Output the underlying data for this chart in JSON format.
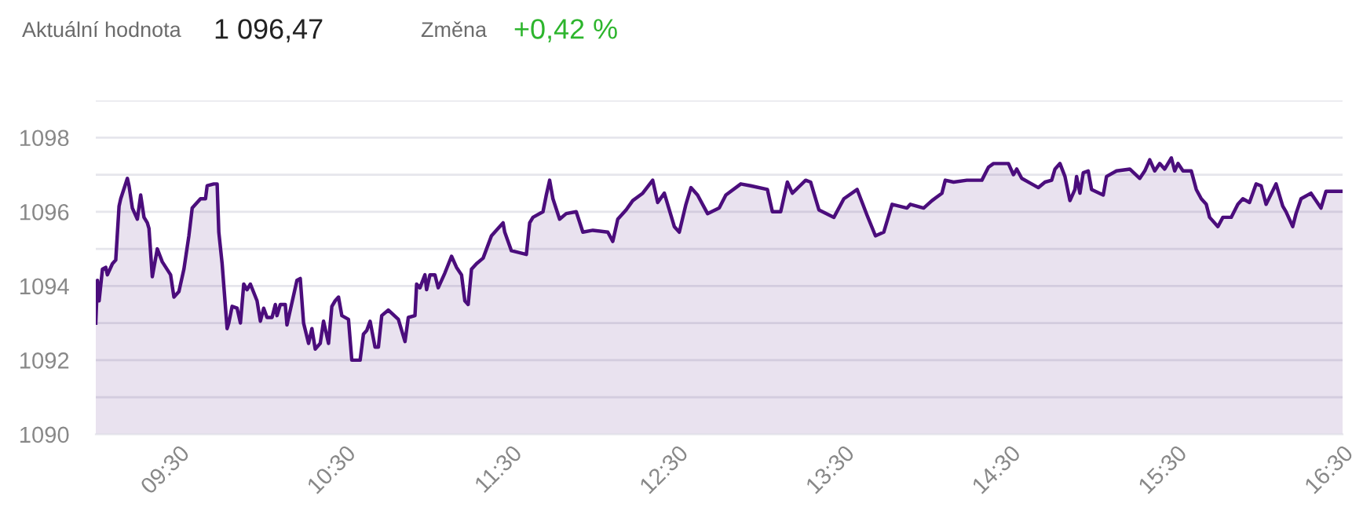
{
  "chart_data": {
    "type": "area",
    "annotations": [
      "Aktuální hodnota",
      "1 096,47",
      "Změna",
      "+0,42 %"
    ],
    "xlim": [
      9,
      16.5
    ],
    "xticks": [
      {
        "value": 9.5,
        "label": "09:30"
      },
      {
        "value": 10.5,
        "label": "10:30"
      },
      {
        "value": 11.5,
        "label": "11:30"
      },
      {
        "value": 12.5,
        "label": "12:30"
      },
      {
        "value": 13.5,
        "label": "13:30"
      },
      {
        "value": 14.5,
        "label": "14:30"
      },
      {
        "value": 15.5,
        "label": "15:30"
      },
      {
        "value": 16.5,
        "label": "16:30"
      }
    ],
    "ylim": [
      1090,
      1099
    ],
    "yticks": [
      1090,
      {
        "value": 1091,
        "label": null
      },
      1092,
      {
        "value": 1093,
        "label": null
      },
      1094,
      {
        "value": 1095,
        "label": null
      },
      1096,
      {
        "value": 1097,
        "label": null
      },
      1098,
      {
        "value": 1099,
        "label": null
      }
    ],
    "grid": "y",
    "legend": false,
    "marker": "none",
    "line_style": "solid",
    "series": [
      {
        "color": "#4b0d7c",
        "x": [
          9.0,
          9.01,
          9.02,
          9.04,
          9.06,
          9.07,
          9.1,
          9.12,
          9.14,
          9.15,
          9.19,
          9.2,
          9.22,
          9.23,
          9.25,
          9.27,
          9.29,
          9.31,
          9.32,
          9.34,
          9.37,
          9.4,
          9.45,
          9.47,
          9.5,
          9.53,
          9.56,
          9.58,
          9.6,
          9.63,
          9.66,
          9.67,
          9.71,
          9.73,
          9.74,
          9.76,
          9.79,
          9.8,
          9.82,
          9.85,
          9.87,
          9.89,
          9.91,
          9.93,
          9.97,
          9.99,
          10.01,
          10.03,
          10.06,
          10.08,
          10.09,
          10.11,
          10.14,
          10.15,
          10.17,
          10.21,
          10.23,
          10.25,
          10.28,
          10.3,
          10.32,
          10.35,
          10.37,
          10.4,
          10.42,
          10.44,
          10.46,
          10.48,
          10.52,
          10.54,
          10.59,
          10.61,
          10.63,
          10.65,
          10.68,
          10.7,
          10.72,
          10.76,
          10.82,
          10.86,
          10.88,
          10.92,
          10.93,
          10.95,
          10.98,
          10.99,
          11.01,
          11.04,
          11.06,
          11.1,
          11.14,
          11.17,
          11.2,
          11.22,
          11.24,
          11.26,
          11.29,
          11.33,
          11.38,
          11.42,
          11.45,
          11.46,
          11.5,
          11.59,
          11.61,
          11.63,
          11.69,
          11.71,
          11.73,
          11.75,
          11.79,
          11.83,
          11.89,
          11.93,
          11.99,
          12.08,
          12.11,
          12.14,
          12.19,
          12.23,
          12.29,
          12.35,
          12.38,
          12.42,
          12.48,
          12.51,
          12.55,
          12.58,
          12.62,
          12.68,
          12.75,
          12.79,
          12.88,
          12.94,
          13.04,
          13.07,
          13.12,
          13.16,
          13.19,
          13.27,
          13.3,
          13.35,
          13.44,
          13.5,
          13.58,
          13.64,
          13.69,
          13.74,
          13.79,
          13.88,
          13.9,
          13.98,
          14.03,
          14.09,
          14.11,
          14.16,
          14.24,
          14.33,
          14.37,
          14.4,
          14.49,
          14.52,
          14.54,
          14.57,
          14.63,
          14.67,
          14.71,
          14.75,
          14.77,
          14.8,
          14.83,
          14.86,
          14.89,
          14.9,
          14.92,
          14.94,
          14.97,
          14.99,
          15.06,
          15.08,
          15.14,
          15.22,
          15.28,
          15.31,
          15.34,
          15.37,
          15.4,
          15.43,
          15.47,
          15.49,
          15.51,
          15.54,
          15.59,
          15.62,
          15.65,
          15.68,
          15.7,
          15.75,
          15.78,
          15.83,
          15.87,
          15.9,
          15.94,
          15.98,
          16.01,
          16.04,
          16.1,
          16.14,
          16.16,
          16.2,
          16.22,
          16.25,
          16.31,
          16.37,
          16.4,
          16.5
        ],
        "values": [
          1093.0,
          1094.15,
          1093.6,
          1094.45,
          1094.5,
          1094.3,
          1094.6,
          1094.7,
          1096.15,
          1096.35,
          1096.9,
          1096.7,
          1096.1,
          1096.0,
          1095.8,
          1096.45,
          1095.85,
          1095.7,
          1095.55,
          1094.25,
          1095.0,
          1094.65,
          1094.3,
          1093.7,
          1093.85,
          1094.45,
          1095.35,
          1096.1,
          1096.2,
          1096.35,
          1096.35,
          1096.7,
          1096.75,
          1096.75,
          1095.45,
          1094.6,
          1092.85,
          1093.0,
          1093.45,
          1093.4,
          1093.0,
          1094.05,
          1093.9,
          1094.05,
          1093.6,
          1093.05,
          1093.4,
          1093.15,
          1093.15,
          1093.5,
          1093.2,
          1093.5,
          1093.5,
          1092.95,
          1093.35,
          1094.15,
          1094.2,
          1093.0,
          1092.45,
          1092.85,
          1092.3,
          1092.45,
          1093.05,
          1092.45,
          1093.45,
          1093.6,
          1093.7,
          1093.2,
          1093.1,
          1092.0,
          1092.0,
          1092.7,
          1092.8,
          1093.05,
          1092.35,
          1092.35,
          1093.2,
          1093.35,
          1093.1,
          1092.5,
          1093.15,
          1093.2,
          1094.05,
          1093.95,
          1094.3,
          1093.9,
          1094.3,
          1094.3,
          1093.95,
          1094.35,
          1094.8,
          1094.5,
          1094.3,
          1093.6,
          1093.5,
          1094.45,
          1094.6,
          1094.75,
          1095.35,
          1095.55,
          1095.7,
          1095.45,
          1094.95,
          1094.85,
          1095.7,
          1095.85,
          1096.0,
          1096.45,
          1096.85,
          1096.35,
          1095.8,
          1095.95,
          1096.0,
          1095.45,
          1095.5,
          1095.45,
          1095.2,
          1095.8,
          1096.05,
          1096.3,
          1096.5,
          1096.85,
          1096.25,
          1096.5,
          1095.6,
          1095.45,
          1096.2,
          1096.65,
          1096.45,
          1095.95,
          1096.1,
          1096.45,
          1096.75,
          1096.7,
          1096.6,
          1096.0,
          1096.0,
          1096.8,
          1096.5,
          1096.85,
          1096.8,
          1096.05,
          1095.85,
          1096.35,
          1096.6,
          1095.9,
          1095.35,
          1095.45,
          1096.2,
          1096.1,
          1096.2,
          1096.1,
          1096.3,
          1096.5,
          1096.85,
          1096.8,
          1096.85,
          1096.85,
          1097.2,
          1097.3,
          1097.3,
          1097.0,
          1097.15,
          1096.9,
          1096.75,
          1096.65,
          1096.8,
          1096.85,
          1097.15,
          1097.3,
          1096.95,
          1096.3,
          1096.6,
          1096.95,
          1096.5,
          1097.05,
          1097.1,
          1096.6,
          1096.45,
          1096.95,
          1097.1,
          1097.15,
          1096.9,
          1097.1,
          1097.4,
          1097.1,
          1097.3,
          1097.15,
          1097.45,
          1097.1,
          1097.3,
          1097.1,
          1097.1,
          1096.6,
          1096.35,
          1096.2,
          1095.85,
          1095.6,
          1095.85,
          1095.85,
          1096.2,
          1096.35,
          1096.25,
          1096.75,
          1096.7,
          1096.2,
          1096.75,
          1096.15,
          1096.0,
          1095.6,
          1095.95,
          1096.35,
          1096.5,
          1096.1,
          1096.55,
          1096.55
        ]
      }
    ]
  }
}
